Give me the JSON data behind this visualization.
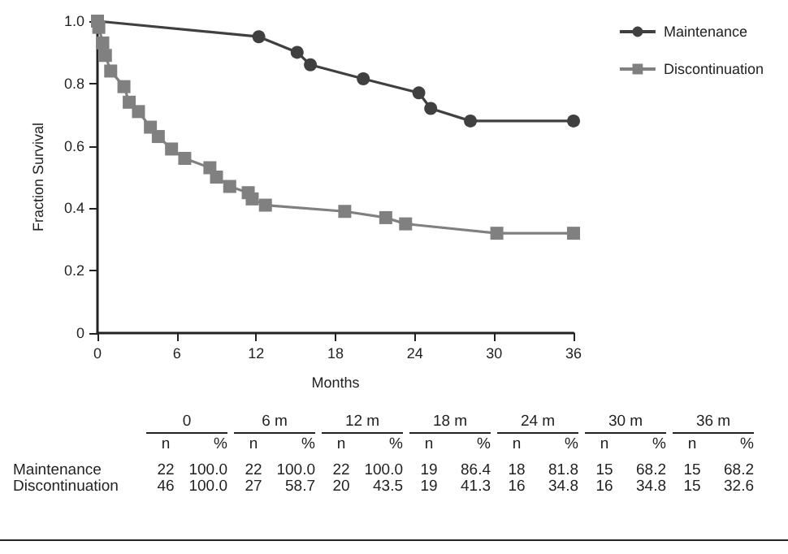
{
  "chart_data": {
    "type": "line",
    "xlabel": "Months",
    "ylabel": "Fraction Survival",
    "xlim": [
      0,
      36
    ],
    "xticks": [
      0,
      6,
      12,
      18,
      24,
      30,
      36
    ],
    "ylim": [
      0,
      1
    ],
    "yticks": [
      {
        "value": 0,
        "label": "0"
      },
      0.2,
      0.4,
      0.6,
      0.8,
      {
        "value": 1,
        "label": "1.0"
      }
    ],
    "grid": false,
    "legend": "top right",
    "line_style": "solid",
    "series": [
      {
        "name": "Maintenance",
        "color": "#404040",
        "marker": "circle",
        "x": [
          0,
          12.2,
          15.1,
          16.1,
          20.1,
          24.3,
          25.2,
          28.2,
          36
        ],
        "values": [
          1.0,
          0.95,
          0.9,
          0.86,
          0.815,
          0.77,
          0.72,
          0.68,
          0.68
        ]
      },
      {
        "name": "Discontinuation",
        "color": "#808080",
        "marker": "square",
        "x": [
          0,
          0.1,
          0.4,
          0.6,
          1.0,
          2.0,
          2.4,
          3.1,
          4.0,
          4.6,
          5.6,
          6.6,
          8.5,
          9.0,
          10.0,
          11.4,
          11.7,
          12.7,
          18.7,
          21.8,
          23.3,
          30.2,
          36
        ],
        "values": [
          1.0,
          0.98,
          0.93,
          0.89,
          0.84,
          0.79,
          0.74,
          0.71,
          0.66,
          0.63,
          0.59,
          0.56,
          0.53,
          0.5,
          0.47,
          0.45,
          0.43,
          0.41,
          0.39,
          0.37,
          0.35,
          0.32,
          0.32
        ]
      }
    ],
    "annotations": [
      "\t0\t6 m\t12 m\t18 m\t24 m\t30 m\t36 m",
      "\tn\t%\tn\t%\tn\t%\tn\t%\tn\t%\tn\t%\tn\t%",
      "Maintenance\t22\t100.0\t22\t100.0\t22\t100.0\t19\t86.4\t18\t81.8\t15\t68.2\t15\t68.2",
      "Discontinuation\t46\t100.0\t27\t58.7\t20\t43.5\t19\t41.3\t16\t34.8\t16\t34.8\t15\t32.6"
    ]
  }
}
